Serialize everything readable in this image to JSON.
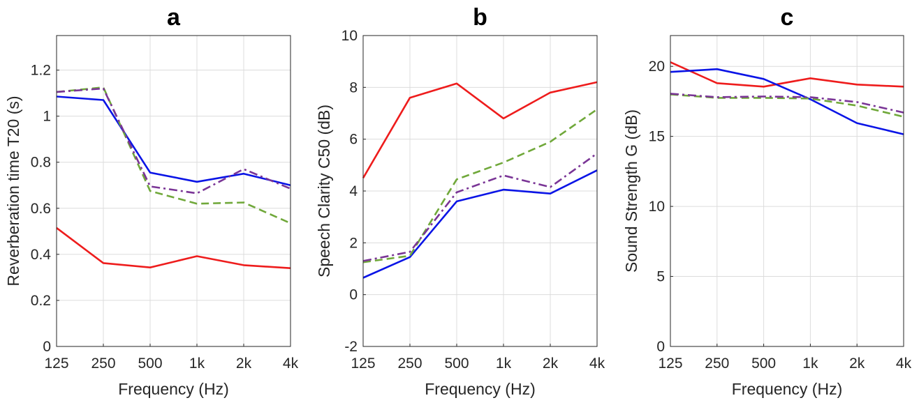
{
  "colors": {
    "series_red": "#ee1c1c",
    "series_blue": "#0a14e6",
    "series_green": "#70a83a",
    "series_purple": "#7a3596",
    "axis": "#262626",
    "grid": "#dcdcdc"
  },
  "chart_data": [
    {
      "type": "line",
      "panel": "a",
      "title": "a",
      "xlabel": "Frequency (Hz)",
      "ylabel": "Reverberation time T20 (s)",
      "categories": [
        "125",
        "250",
        "500",
        "1k",
        "2k",
        "4k"
      ],
      "ylim": [
        0,
        1.35
      ],
      "yticks": [
        "0",
        "0.2",
        "0.4",
        "0.6",
        "0.8",
        "1",
        "1.2"
      ],
      "ytick_values": [
        0,
        0.2,
        0.4,
        0.6,
        0.8,
        1.0,
        1.2
      ],
      "grid": true,
      "series": [
        {
          "name": "red",
          "style": "solid",
          "values": [
            0.515,
            0.362,
            0.343,
            0.392,
            0.353,
            0.34
          ]
        },
        {
          "name": "blue",
          "style": "solid",
          "values": [
            1.085,
            1.07,
            0.755,
            0.715,
            0.75,
            0.7
          ]
        },
        {
          "name": "green",
          "style": "dashed",
          "values": [
            1.105,
            1.125,
            0.675,
            0.62,
            0.625,
            0.535
          ]
        },
        {
          "name": "purple",
          "style": "dashdot",
          "values": [
            1.105,
            1.12,
            0.695,
            0.665,
            0.77,
            0.685
          ]
        }
      ]
    },
    {
      "type": "line",
      "panel": "b",
      "title": "b",
      "xlabel": "Frequency (Hz)",
      "ylabel": "Speech Clarity C50 (dB)",
      "categories": [
        "125",
        "250",
        "500",
        "1k",
        "2k",
        "4k"
      ],
      "ylim": [
        -2,
        10
      ],
      "yticks": [
        "-2",
        "0",
        "2",
        "4",
        "6",
        "8",
        "10"
      ],
      "ytick_values": [
        -2,
        0,
        2,
        4,
        6,
        8,
        10
      ],
      "grid": true,
      "series": [
        {
          "name": "red",
          "style": "solid",
          "values": [
            4.5,
            7.6,
            8.15,
            6.8,
            7.8,
            8.2
          ]
        },
        {
          "name": "blue",
          "style": "solid",
          "values": [
            0.65,
            1.45,
            3.6,
            4.05,
            3.9,
            4.8
          ]
        },
        {
          "name": "green",
          "style": "dashed",
          "values": [
            1.25,
            1.5,
            4.45,
            5.1,
            5.9,
            7.15
          ]
        },
        {
          "name": "purple",
          "style": "dashdot",
          "values": [
            1.3,
            1.65,
            3.95,
            4.6,
            4.15,
            5.45
          ]
        }
      ]
    },
    {
      "type": "line",
      "panel": "c",
      "title": "c",
      "xlabel": "Frequency (Hz)",
      "ylabel": "Sound Strength G (dB)",
      "categories": [
        "125",
        "250",
        "500",
        "1k",
        "2k",
        "4k"
      ],
      "ylim": [
        0,
        22.2
      ],
      "yticks": [
        "0",
        "5",
        "10",
        "15",
        "20"
      ],
      "ytick_values": [
        0,
        5,
        10,
        15,
        20
      ],
      "grid": true,
      "series": [
        {
          "name": "red",
          "style": "solid",
          "values": [
            20.3,
            18.8,
            18.55,
            19.15,
            18.7,
            18.55
          ]
        },
        {
          "name": "blue",
          "style": "solid",
          "values": [
            19.6,
            19.8,
            19.1,
            17.65,
            15.95,
            15.15
          ]
        },
        {
          "name": "green",
          "style": "dashed",
          "values": [
            18.0,
            17.75,
            17.75,
            17.7,
            17.2,
            16.4
          ]
        },
        {
          "name": "purple",
          "style": "dashdot",
          "values": [
            18.05,
            17.8,
            17.85,
            17.8,
            17.45,
            16.7
          ]
        }
      ]
    }
  ]
}
